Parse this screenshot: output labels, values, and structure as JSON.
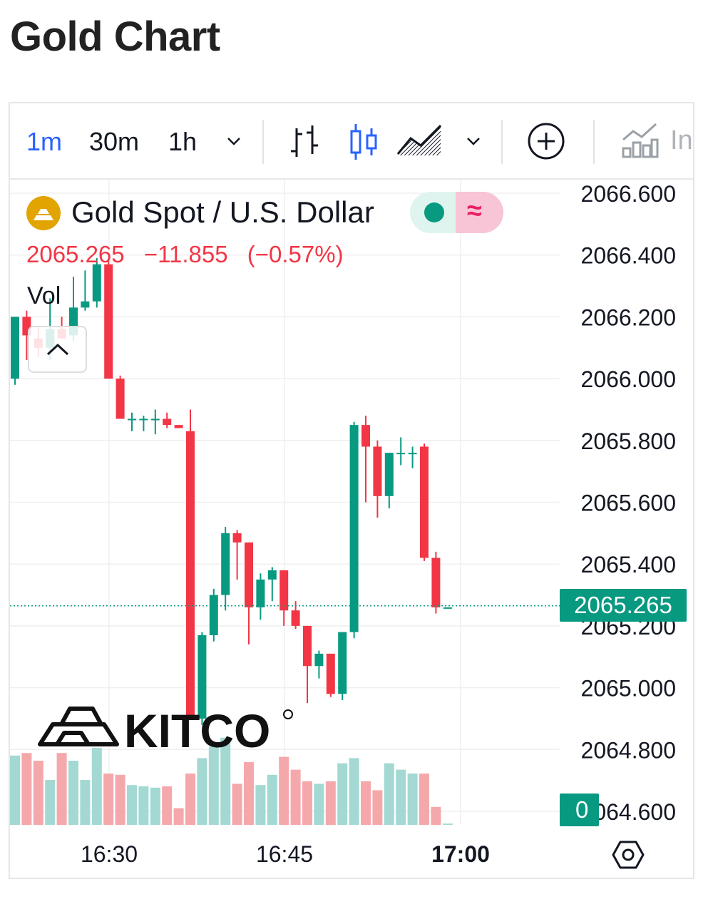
{
  "page_title": "Gold Chart",
  "toolbar": {
    "timeframes": [
      "1m",
      "30m",
      "1h"
    ],
    "active_timeframe": "1m",
    "indicators_label": "In"
  },
  "symbol": {
    "name": "Gold Spot / U.S. Dollar",
    "last": "2065.265",
    "change": "−11.855",
    "change_pct": "(−0.57%)"
  },
  "volume_label": "Vol",
  "price_badge": "2065.265",
  "volume_badge": "0",
  "logo_text": "KITCO",
  "colors": {
    "up": "#089981",
    "down": "#f23645",
    "up_volume": "#a3d9d2",
    "down_volume": "#f5a8ab",
    "accent": "#2962ff"
  },
  "chart_data": {
    "type": "candlestick",
    "interval": "1m",
    "y_ticks": [
      "2066.600",
      "2066.400",
      "2066.200",
      "2066.000",
      "2065.800",
      "2065.600",
      "2065.400",
      "2065.200",
      "2065.000",
      "2064.800",
      "2064.600"
    ],
    "x_ticks": [
      "16:30",
      "16:45",
      "17:00"
    ],
    "ylim": [
      2064.6,
      2066.6
    ],
    "grid": true,
    "last_price": 2065.265,
    "candles": [
      {
        "o": 2066.0,
        "h": 2066.2,
        "l": 2065.98,
        "c": 2066.2,
        "v": 0.54
      },
      {
        "o": 2066.2,
        "h": 2066.22,
        "l": 2066.06,
        "c": 2066.14,
        "v": 0.56
      },
      {
        "o": 2066.13,
        "h": 2066.17,
        "l": 2066.07,
        "c": 2066.1,
        "v": 0.5
      },
      {
        "o": 2066.1,
        "h": 2066.26,
        "l": 2066.06,
        "c": 2066.16,
        "v": 0.35
      },
      {
        "o": 2066.16,
        "h": 2066.2,
        "l": 2066.13,
        "c": 2066.13,
        "v": 0.56
      },
      {
        "o": 2066.14,
        "h": 2066.33,
        "l": 2066.12,
        "c": 2066.23,
        "v": 0.5
      },
      {
        "o": 2066.23,
        "h": 2066.35,
        "l": 2066.22,
        "c": 2066.25,
        "v": 0.35
      },
      {
        "o": 2066.25,
        "h": 2066.39,
        "l": 2066.23,
        "c": 2066.37,
        "v": 0.6
      },
      {
        "o": 2066.37,
        "h": 2066.38,
        "l": 2066.0,
        "c": 2066.0,
        "v": 0.4
      },
      {
        "o": 2066.0,
        "h": 2066.01,
        "l": 2065.87,
        "c": 2065.87,
        "v": 0.39
      },
      {
        "o": 2065.87,
        "h": 2065.89,
        "l": 2065.83,
        "c": 2065.87,
        "v": 0.31
      },
      {
        "o": 2065.87,
        "h": 2065.88,
        "l": 2065.83,
        "c": 2065.87,
        "v": 0.3
      },
      {
        "o": 2065.87,
        "h": 2065.9,
        "l": 2065.82,
        "c": 2065.87,
        "v": 0.29
      },
      {
        "o": 2065.87,
        "h": 2065.89,
        "l": 2065.84,
        "c": 2065.85,
        "v": 0.3
      },
      {
        "o": 2065.85,
        "h": 2065.85,
        "l": 2065.84,
        "c": 2065.84,
        "v": 0.13
      },
      {
        "o": 2065.83,
        "h": 2065.9,
        "l": 2064.9,
        "c": 2064.9,
        "v": 0.4
      },
      {
        "o": 2064.9,
        "h": 2065.18,
        "l": 2064.88,
        "c": 2065.17,
        "v": 0.52
      },
      {
        "o": 2065.17,
        "h": 2065.32,
        "l": 2065.15,
        "c": 2065.3,
        "v": 0.61
      },
      {
        "o": 2065.3,
        "h": 2065.52,
        "l": 2065.25,
        "c": 2065.5,
        "v": 0.68
      },
      {
        "o": 2065.5,
        "h": 2065.51,
        "l": 2065.35,
        "c": 2065.47,
        "v": 0.32
      },
      {
        "o": 2065.47,
        "h": 2065.47,
        "l": 2065.14,
        "c": 2065.26,
        "v": 0.49
      },
      {
        "o": 2065.26,
        "h": 2065.37,
        "l": 2065.22,
        "c": 2065.35,
        "v": 0.31
      },
      {
        "o": 2065.35,
        "h": 2065.39,
        "l": 2065.28,
        "c": 2065.38,
        "v": 0.39
      },
      {
        "o": 2065.38,
        "h": 2065.38,
        "l": 2065.2,
        "c": 2065.25,
        "v": 0.53
      },
      {
        "o": 2065.25,
        "h": 2065.28,
        "l": 2065.19,
        "c": 2065.2,
        "v": 0.43
      },
      {
        "o": 2065.2,
        "h": 2065.2,
        "l": 2064.95,
        "c": 2065.07,
        "v": 0.34
      },
      {
        "o": 2065.07,
        "h": 2065.12,
        "l": 2065.03,
        "c": 2065.11,
        "v": 0.32
      },
      {
        "o": 2065.11,
        "h": 2065.11,
        "l": 2064.97,
        "c": 2064.98,
        "v": 0.34
      },
      {
        "o": 2064.98,
        "h": 2065.18,
        "l": 2064.96,
        "c": 2065.18,
        "v": 0.48
      },
      {
        "o": 2065.18,
        "h": 2065.86,
        "l": 2065.16,
        "c": 2065.85,
        "v": 0.52
      },
      {
        "o": 2065.85,
        "h": 2065.88,
        "l": 2065.6,
        "c": 2065.78,
        "v": 0.34
      },
      {
        "o": 2065.78,
        "h": 2065.8,
        "l": 2065.55,
        "c": 2065.62,
        "v": 0.27
      },
      {
        "o": 2065.62,
        "h": 2065.76,
        "l": 2065.58,
        "c": 2065.76,
        "v": 0.48
      },
      {
        "o": 2065.76,
        "h": 2065.81,
        "l": 2065.72,
        "c": 2065.76,
        "v": 0.43
      },
      {
        "o": 2065.76,
        "h": 2065.78,
        "l": 2065.71,
        "c": 2065.76,
        "v": 0.4
      },
      {
        "o": 2065.78,
        "h": 2065.79,
        "l": 2065.41,
        "c": 2065.42,
        "v": 0.4
      },
      {
        "o": 2065.42,
        "h": 2065.44,
        "l": 2065.24,
        "c": 2065.26,
        "v": 0.14
      },
      {
        "o": 2065.26,
        "h": 2065.26,
        "l": 2065.26,
        "c": 2065.26,
        "v": 0.01
      }
    ]
  }
}
